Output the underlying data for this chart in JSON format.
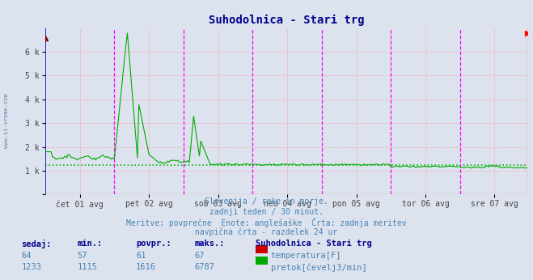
{
  "title": "Suhodolnica - Stari trg",
  "title_color": "#00008b",
  "bg_color": "#dde3ee",
  "plot_bg_color": "#dde3ee",
  "y_min": 0,
  "y_max": 7000,
  "yticks": [
    0,
    1000,
    2000,
    3000,
    4000,
    5000,
    6000
  ],
  "ytick_labels": [
    "",
    "1 k",
    "2 k",
    "3 k",
    "4 k",
    "5 k",
    "6 k"
  ],
  "x_day_labels": [
    "čet 01 avg",
    "pet 02 avg",
    "sob 03 avg",
    "ned 04 avg",
    "pon 05 avg",
    "tor 06 avg",
    "sre 07 avg"
  ],
  "magenta_vlines_idx": [
    48,
    96,
    144,
    192,
    240,
    288,
    336
  ],
  "red_vlines_idx": [
    24,
    72,
    120,
    168,
    216,
    264,
    312
  ],
  "grid_h_color": "#ff9999",
  "avg_line_color": "#00bb00",
  "avg_line_value": 1233,
  "temp_color": "#cc0000",
  "flow_color": "#00aa00",
  "sidebar_text": "www.si-vreme.com",
  "sidebar_color": "#5588aa",
  "subtitle_lines": [
    "Slovenija / reke in morje.",
    "zadnji teden / 30 minut.",
    "Meritve: povprečne  Enote: anglešaške  Črta: zadnja meritev",
    "navpična črta - razdelek 24 ur"
  ],
  "subtitle_color": "#4682b4",
  "table_header": [
    "sedaj:",
    "min.:",
    "povpr.:",
    "maks.:",
    "Suhodolnica - Stari trg"
  ],
  "table_row1": [
    "64",
    "57",
    "61",
    "67",
    "temperatura[F]"
  ],
  "table_row2": [
    "1233",
    "1115",
    "1616",
    "6787",
    "pretok[čevelj3/min]"
  ],
  "table_label_color": "#00008b",
  "table_value_color": "#4682b4"
}
